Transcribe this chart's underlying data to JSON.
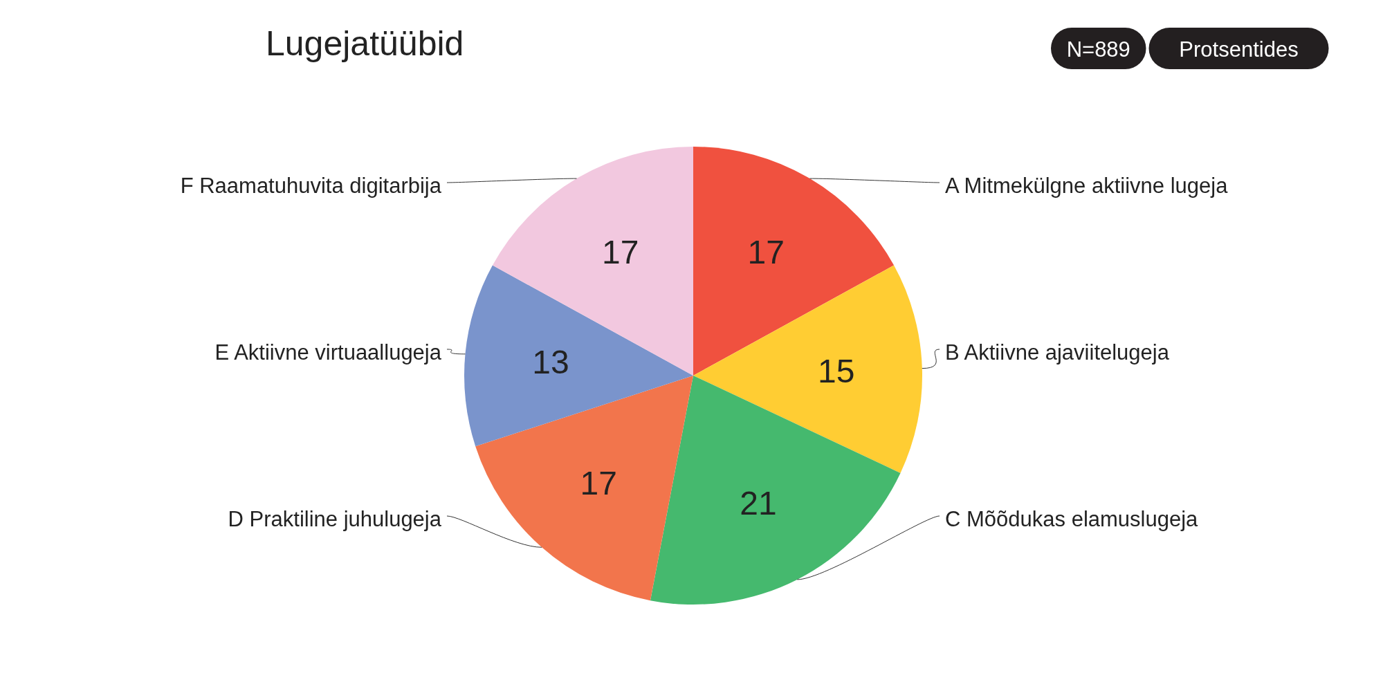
{
  "chart_data": {
    "type": "pie",
    "title": "Lugejatüübid",
    "annotations": [
      "N=889",
      "Protsentides"
    ],
    "categories": [
      "A Mitmekülgne aktiivne lugeja",
      "B Aktiivne ajaviitelugeja",
      "C Mõõdukas elamuslugeja",
      "D Praktiline juhulugeja",
      "E Aktiivne virtuaallugeja",
      "F Raamatuhuvita digitarbija"
    ],
    "values": [
      17,
      15,
      21,
      17,
      13,
      17
    ],
    "colors": [
      "#f0513f",
      "#ffcd33",
      "#45b96e",
      "#f2754c",
      "#7a94cc",
      "#f2c8df"
    ],
    "data_labels": true
  }
}
